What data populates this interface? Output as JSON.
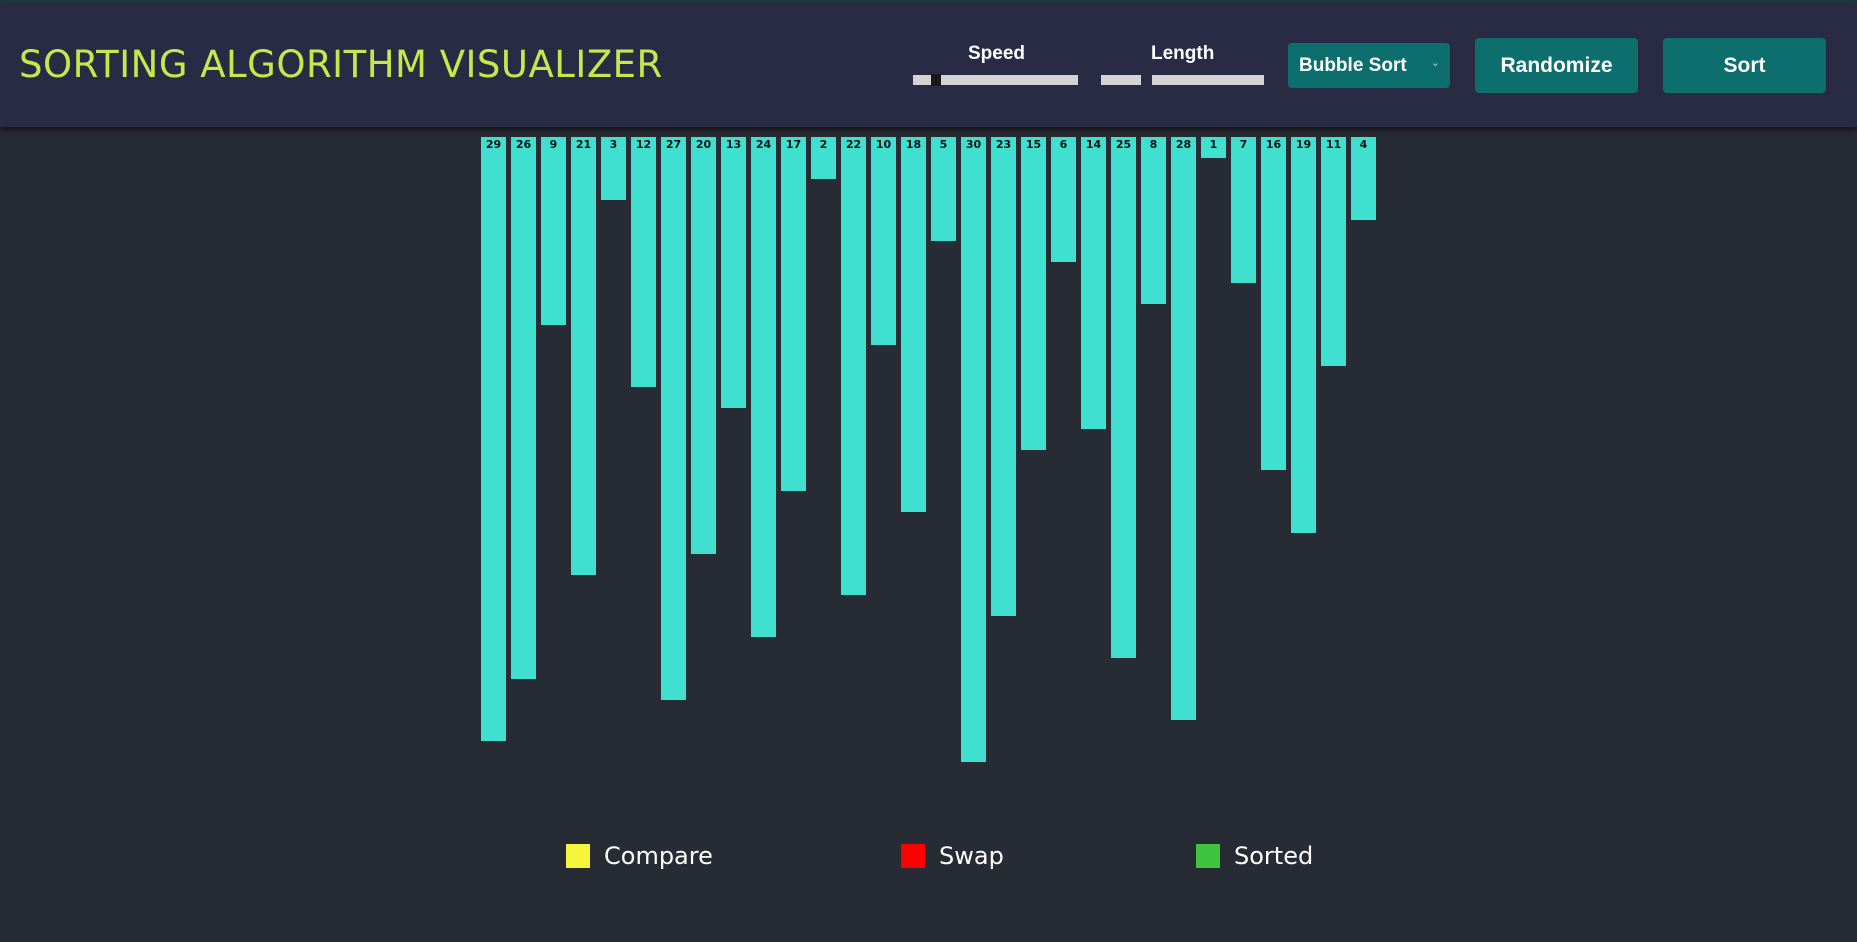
{
  "header": {
    "title": "SORTING ALGORITHM VISUALIZER",
    "speed": {
      "label": "Speed",
      "value_fraction": 0.12
    },
    "length": {
      "label": "Length"
    },
    "algorithm": {
      "selected": "Bubble Sort"
    },
    "randomize_label": "Randomize",
    "sort_label": "Sort"
  },
  "colors": {
    "title": "#c9e64a",
    "header_bg": "#292b44",
    "page_bg": "#272b33",
    "button_bg": "#0d6e6e",
    "bar": "#40e0d0",
    "compare": "#f5f53b",
    "swap": "#ff0000",
    "sorted": "#3ec43e"
  },
  "array": {
    "max": 30,
    "values": [
      29,
      26,
      9,
      21,
      3,
      12,
      27,
      20,
      13,
      24,
      17,
      2,
      22,
      10,
      18,
      5,
      30,
      23,
      15,
      6,
      14,
      25,
      8,
      28,
      1,
      7,
      16,
      19,
      11,
      4
    ]
  },
  "legend": [
    {
      "label": "Compare",
      "color": "#f5f53b",
      "icon": "compare-swatch"
    },
    {
      "label": "Swap",
      "color": "#ff0000",
      "icon": "swap-swatch"
    },
    {
      "label": "Sorted",
      "color": "#3ec43e",
      "icon": "sorted-swatch"
    }
  ]
}
